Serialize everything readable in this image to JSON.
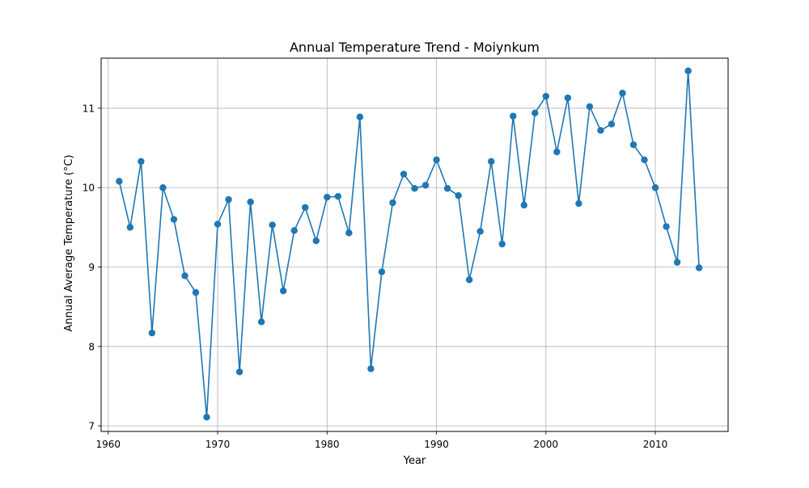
{
  "chart_data": {
    "type": "line",
    "title": "Annual Temperature Trend - Moiynkum",
    "xlabel": "Year",
    "ylabel": "Annual Average Temperature (°C)",
    "xlim": [
      1959.35,
      2016.65
    ],
    "ylim": [
      6.93,
      11.63
    ],
    "xticks": [
      1960,
      1970,
      1980,
      1990,
      2000,
      2010
    ],
    "yticks": [
      7,
      8,
      9,
      10,
      11
    ],
    "grid": true,
    "marker": "circle",
    "color": "#1f77b4",
    "series": [
      {
        "x": [
          1961,
          1962,
          1963,
          1964,
          1965,
          1966,
          1967,
          1968,
          1969,
          1970,
          1971,
          1972,
          1973,
          1974,
          1975,
          1976,
          1977,
          1978,
          1979,
          1980,
          1981,
          1982,
          1983,
          1984,
          1985,
          1986,
          1987,
          1988,
          1989,
          1990,
          1991,
          1992,
          1993,
          1994,
          1995,
          1996,
          1997,
          1998,
          1999,
          2000,
          2001,
          2002,
          2003,
          2004,
          2005,
          2006,
          2007,
          2008,
          2009,
          2010,
          2011,
          2012,
          2013,
          2014
        ],
        "values": [
          10.08,
          9.5,
          10.33,
          8.17,
          10.0,
          9.6,
          8.89,
          8.68,
          7.11,
          9.54,
          9.85,
          7.68,
          9.82,
          8.31,
          9.53,
          8.7,
          9.46,
          9.75,
          9.33,
          9.88,
          9.89,
          9.43,
          10.89,
          7.72,
          8.94,
          9.81,
          10.17,
          9.99,
          10.03,
          10.35,
          9.99,
          9.9,
          8.84,
          9.45,
          10.33,
          9.29,
          10.9,
          9.78,
          10.94,
          11.15,
          10.45,
          11.13,
          9.8,
          11.02,
          10.72,
          10.8,
          11.19,
          10.54,
          10.35,
          10.0,
          9.51,
          9.06,
          11.47,
          8.99
        ]
      }
    ]
  }
}
